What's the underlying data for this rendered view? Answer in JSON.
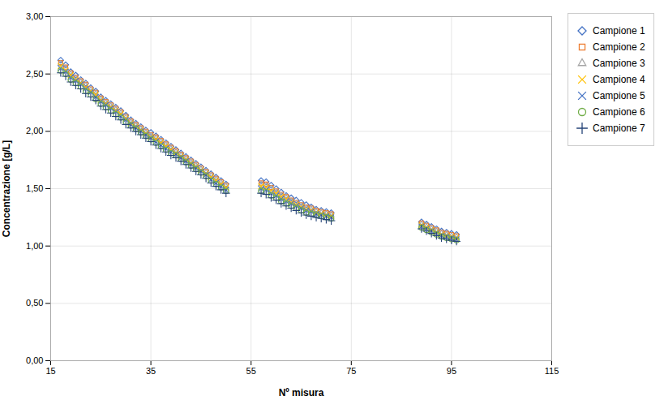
{
  "chart_data": {
    "type": "scatter",
    "xlabel": "Nº misura",
    "ylabel": "Concentrazione [g/L]",
    "xlim": [
      15,
      115
    ],
    "ylim": [
      0.0,
      3.0
    ],
    "xticks": [
      15,
      35,
      55,
      75,
      95,
      115
    ],
    "yticks": [
      {
        "value": 0.0,
        "label": "0,00"
      },
      {
        "value": 0.5,
        "label": "0,50"
      },
      {
        "value": 1.0,
        "label": "1,00"
      },
      {
        "value": 1.5,
        "label": "1,50"
      },
      {
        "value": 2.0,
        "label": "2,00"
      },
      {
        "value": 2.5,
        "label": "2,50"
      },
      {
        "value": 3.0,
        "label": "3,00"
      }
    ],
    "grid": true,
    "legend": "right",
    "series": [
      {
        "name": "Campione 1",
        "color": "#4472C4",
        "marker": "diamond",
        "x": [
          17,
          18,
          19,
          20,
          21,
          22,
          23,
          24,
          25,
          26,
          27,
          28,
          29,
          30,
          31,
          32,
          33,
          34,
          35,
          36,
          37,
          38,
          39,
          40,
          41,
          42,
          43,
          44,
          45,
          46,
          47,
          48,
          49,
          50,
          57,
          58,
          59,
          60,
          61,
          62,
          63,
          64,
          65,
          66,
          67,
          68,
          69,
          70,
          71,
          89,
          90,
          91,
          92,
          93,
          94,
          95,
          96
        ],
        "values": [
          2.62,
          2.58,
          2.52,
          2.49,
          2.45,
          2.42,
          2.38,
          2.35,
          2.3,
          2.27,
          2.24,
          2.21,
          2.18,
          2.14,
          2.1,
          2.07,
          2.04,
          2.01,
          1.99,
          1.96,
          1.93,
          1.9,
          1.87,
          1.84,
          1.81,
          1.78,
          1.75,
          1.72,
          1.69,
          1.66,
          1.63,
          1.6,
          1.57,
          1.54,
          1.57,
          1.56,
          1.53,
          1.5,
          1.47,
          1.44,
          1.42,
          1.4,
          1.38,
          1.36,
          1.34,
          1.32,
          1.31,
          1.3,
          1.29,
          1.21,
          1.19,
          1.17,
          1.15,
          1.13,
          1.12,
          1.11,
          1.1
        ]
      },
      {
        "name": "Campione 2",
        "color": "#ED7D31",
        "marker": "square",
        "x": [
          17,
          18,
          19,
          20,
          21,
          22,
          23,
          24,
          25,
          26,
          27,
          28,
          29,
          30,
          31,
          32,
          33,
          34,
          35,
          36,
          37,
          38,
          39,
          40,
          41,
          42,
          43,
          44,
          45,
          46,
          47,
          48,
          49,
          50,
          57,
          58,
          59,
          60,
          61,
          62,
          63,
          64,
          65,
          66,
          67,
          68,
          69,
          70,
          71,
          89,
          90,
          91,
          92,
          93,
          94,
          95,
          96
        ],
        "values": [
          2.6,
          2.56,
          2.51,
          2.47,
          2.44,
          2.41,
          2.37,
          2.34,
          2.29,
          2.26,
          2.23,
          2.2,
          2.17,
          2.13,
          2.09,
          2.06,
          2.03,
          2.0,
          1.97,
          1.95,
          1.92,
          1.89,
          1.86,
          1.83,
          1.8,
          1.77,
          1.74,
          1.71,
          1.68,
          1.65,
          1.62,
          1.59,
          1.56,
          1.53,
          1.55,
          1.54,
          1.51,
          1.48,
          1.45,
          1.43,
          1.4,
          1.38,
          1.36,
          1.34,
          1.33,
          1.31,
          1.3,
          1.29,
          1.28,
          1.2,
          1.18,
          1.16,
          1.14,
          1.12,
          1.11,
          1.1,
          1.09
        ]
      },
      {
        "name": "Campione 3",
        "color": "#A5A5A5",
        "marker": "triangle",
        "x": [
          17,
          18,
          19,
          20,
          21,
          22,
          23,
          24,
          25,
          26,
          27,
          28,
          29,
          30,
          31,
          32,
          33,
          34,
          35,
          36,
          37,
          38,
          39,
          40,
          41,
          42,
          43,
          44,
          45,
          46,
          47,
          48,
          49,
          50,
          57,
          58,
          59,
          60,
          61,
          62,
          63,
          64,
          65,
          66,
          67,
          68,
          69,
          70,
          71,
          89,
          90,
          91,
          92,
          93,
          94,
          95,
          96
        ],
        "values": [
          2.59,
          2.55,
          2.5,
          2.46,
          2.43,
          2.4,
          2.36,
          2.33,
          2.28,
          2.25,
          2.22,
          2.19,
          2.16,
          2.12,
          2.08,
          2.05,
          2.02,
          1.99,
          1.96,
          1.94,
          1.91,
          1.88,
          1.85,
          1.82,
          1.79,
          1.76,
          1.73,
          1.7,
          1.67,
          1.64,
          1.61,
          1.58,
          1.55,
          1.52,
          1.54,
          1.52,
          1.5,
          1.47,
          1.44,
          1.42,
          1.39,
          1.37,
          1.35,
          1.33,
          1.32,
          1.3,
          1.29,
          1.28,
          1.27,
          1.19,
          1.17,
          1.15,
          1.13,
          1.11,
          1.1,
          1.09,
          1.08
        ]
      },
      {
        "name": "Campione 4",
        "color": "#FFC000",
        "marker": "x",
        "x": [
          17,
          18,
          19,
          20,
          21,
          22,
          23,
          24,
          25,
          26,
          27,
          28,
          29,
          30,
          31,
          32,
          33,
          34,
          35,
          36,
          37,
          38,
          39,
          40,
          41,
          42,
          43,
          44,
          45,
          46,
          47,
          48,
          49,
          50,
          57,
          58,
          59,
          60,
          61,
          62,
          63,
          64,
          65,
          66,
          67,
          68,
          69,
          70,
          71,
          89,
          90,
          91,
          92,
          93,
          94,
          95,
          96
        ],
        "values": [
          2.57,
          2.53,
          2.49,
          2.45,
          2.42,
          2.38,
          2.35,
          2.32,
          2.27,
          2.24,
          2.21,
          2.18,
          2.15,
          2.11,
          2.07,
          2.04,
          2.01,
          1.98,
          1.95,
          1.93,
          1.9,
          1.87,
          1.84,
          1.81,
          1.78,
          1.75,
          1.72,
          1.69,
          1.66,
          1.63,
          1.6,
          1.57,
          1.54,
          1.51,
          1.52,
          1.51,
          1.48,
          1.46,
          1.43,
          1.41,
          1.38,
          1.36,
          1.34,
          1.32,
          1.31,
          1.29,
          1.28,
          1.27,
          1.26,
          1.18,
          1.16,
          1.14,
          1.12,
          1.1,
          1.09,
          1.08,
          1.07
        ]
      },
      {
        "name": "Campione 5",
        "color": "#4472C4",
        "marker": "x",
        "x": [
          17,
          18,
          19,
          20,
          21,
          22,
          23,
          24,
          25,
          26,
          27,
          28,
          29,
          30,
          31,
          32,
          33,
          34,
          35,
          36,
          37,
          38,
          39,
          40,
          41,
          42,
          43,
          44,
          45,
          46,
          47,
          48,
          49,
          50,
          57,
          58,
          59,
          60,
          61,
          62,
          63,
          64,
          65,
          66,
          67,
          68,
          69,
          70,
          71,
          89,
          90,
          91,
          92,
          93,
          94,
          95,
          96
        ],
        "values": [
          2.55,
          2.52,
          2.47,
          2.44,
          2.41,
          2.37,
          2.34,
          2.3,
          2.26,
          2.23,
          2.2,
          2.17,
          2.13,
          2.1,
          2.06,
          2.03,
          2.0,
          1.97,
          1.94,
          1.91,
          1.88,
          1.85,
          1.82,
          1.8,
          1.77,
          1.74,
          1.71,
          1.68,
          1.65,
          1.62,
          1.58,
          1.55,
          1.52,
          1.49,
          1.5,
          1.49,
          1.46,
          1.44,
          1.41,
          1.39,
          1.37,
          1.35,
          1.33,
          1.31,
          1.3,
          1.28,
          1.27,
          1.26,
          1.25,
          1.17,
          1.15,
          1.13,
          1.11,
          1.09,
          1.08,
          1.07,
          1.06
        ]
      },
      {
        "name": "Campione 6",
        "color": "#70AD47",
        "marker": "circle",
        "x": [
          17,
          18,
          19,
          20,
          21,
          22,
          23,
          24,
          25,
          26,
          27,
          28,
          29,
          30,
          31,
          32,
          33,
          34,
          35,
          36,
          37,
          38,
          39,
          40,
          41,
          42,
          43,
          44,
          45,
          46,
          47,
          48,
          49,
          50,
          57,
          58,
          59,
          60,
          61,
          62,
          63,
          64,
          65,
          66,
          67,
          68,
          69,
          70,
          71,
          89,
          90,
          91,
          92,
          93,
          94,
          95,
          96
        ],
        "values": [
          2.53,
          2.5,
          2.45,
          2.42,
          2.39,
          2.35,
          2.32,
          2.28,
          2.24,
          2.21,
          2.18,
          2.15,
          2.12,
          2.08,
          2.05,
          2.02,
          1.99,
          1.96,
          1.93,
          1.9,
          1.87,
          1.84,
          1.81,
          1.79,
          1.76,
          1.73,
          1.7,
          1.67,
          1.64,
          1.61,
          1.57,
          1.54,
          1.51,
          1.48,
          1.48,
          1.47,
          1.44,
          1.42,
          1.39,
          1.37,
          1.35,
          1.33,
          1.31,
          1.29,
          1.28,
          1.27,
          1.26,
          1.25,
          1.24,
          1.16,
          1.14,
          1.12,
          1.1,
          1.08,
          1.07,
          1.06,
          1.05
        ]
      },
      {
        "name": "Campione 7",
        "color": "#264478",
        "marker": "plus",
        "x": [
          17,
          18,
          19,
          20,
          21,
          22,
          23,
          24,
          25,
          26,
          27,
          28,
          29,
          30,
          31,
          32,
          33,
          34,
          35,
          36,
          37,
          38,
          39,
          40,
          41,
          42,
          43,
          44,
          45,
          46,
          47,
          48,
          49,
          50,
          57,
          58,
          59,
          60,
          61,
          62,
          63,
          64,
          65,
          66,
          67,
          68,
          69,
          70,
          71,
          89,
          90,
          91,
          92,
          93,
          94,
          95,
          96
        ],
        "values": [
          2.51,
          2.48,
          2.43,
          2.4,
          2.37,
          2.33,
          2.3,
          2.27,
          2.22,
          2.19,
          2.16,
          2.13,
          2.1,
          2.06,
          2.03,
          2.0,
          1.97,
          1.94,
          1.91,
          1.88,
          1.85,
          1.82,
          1.79,
          1.77,
          1.74,
          1.71,
          1.68,
          1.65,
          1.62,
          1.59,
          1.55,
          1.52,
          1.49,
          1.46,
          1.46,
          1.45,
          1.42,
          1.4,
          1.37,
          1.35,
          1.33,
          1.31,
          1.29,
          1.27,
          1.26,
          1.25,
          1.24,
          1.23,
          1.22,
          1.15,
          1.13,
          1.11,
          1.09,
          1.07,
          1.06,
          1.05,
          1.04
        ]
      }
    ]
  }
}
